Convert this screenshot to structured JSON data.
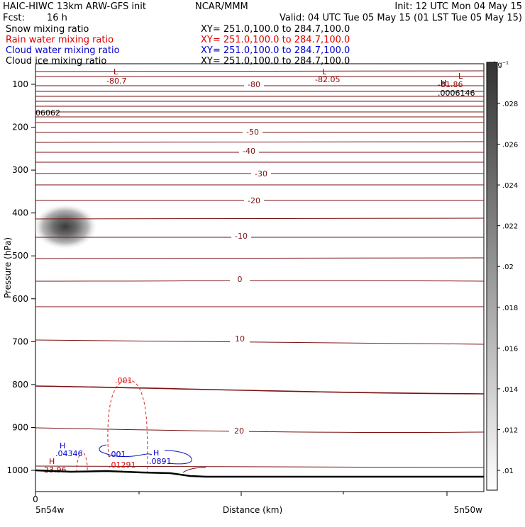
{
  "header": {
    "left_line1": "HAIC-HIWC 13km ARW-GFS init",
    "center_line1": "NCAR/MMM",
    "right_line1": "Init: 12 UTC Mon 04 May 15",
    "fcst_label": "Fcst:",
    "fcst_value": "16 h",
    "valid_line": "Valid: 04 UTC Tue 05 May 15 (01 LST Tue 05 May 15)"
  },
  "fields": [
    {
      "name": "Snow mixing ratio",
      "xy": "XY= 251.0,100.0 to 284.7,100.0",
      "color": "#000000"
    },
    {
      "name": "Rain water mixing ratio",
      "xy": "XY= 251.0,100.0 to 284.7,100.0",
      "color": "#dd0000"
    },
    {
      "name": "Cloud water mixing ratio",
      "xy": "XY= 251.0,100.0 to 284.7,100.0",
      "color": "#0000cc"
    },
    {
      "name": "Cloud ice mixing ratio",
      "xy": "XY= 251.0,100.0 to 284.7,100.0",
      "color": "#000000"
    }
  ],
  "chart_data": {
    "type": "cross-section",
    "xlabel": "Distance (km)",
    "ylabel": "Pressure (hPa)",
    "x_tick_zero": "0",
    "x_end_labels": {
      "left": "5n54w",
      "right": "5n50w"
    },
    "y_ticks": [
      100,
      200,
      300,
      400,
      500,
      600,
      700,
      800,
      900,
      1000
    ],
    "y_range": [
      50,
      1050
    ],
    "colorbar": {
      "unit": "g kg⁻¹",
      "ticks": [
        ".01",
        ".012",
        ".014",
        ".016",
        ".018",
        ".02",
        ".022",
        ".024",
        ".026",
        ".028"
      ]
    },
    "temperature_contour_labels": [
      "-80",
      "-50",
      "-40",
      "-30",
      "-20",
      "-10",
      "0",
      "10",
      "20"
    ],
    "extrema": [
      {
        "type": "L",
        "value": "-80.7",
        "color": "#990000"
      },
      {
        "type": "L",
        "value": "-82.05",
        "color": "#990000"
      },
      {
        "type": "L",
        "value": "-81.86",
        "color": "#990000"
      },
      {
        "type": "H",
        "value": ".0006146",
        "color": "#000000"
      },
      {
        "type": "",
        "value": "06062",
        "color": "#000000"
      },
      {
        "type": "H",
        "value": "23.96",
        "color": "#990000"
      },
      {
        "type": "H",
        "value": ".04346",
        "color": "#0000cc"
      },
      {
        "type": "",
        "value": ".001",
        "color": "#0000cc"
      },
      {
        "type": "",
        "value": ".01291",
        "color": "#dd0000"
      },
      {
        "type": "H",
        "value": ".0891",
        "color": "#0000cc"
      },
      {
        "type": "",
        "value": ".001",
        "color": "#dd0000"
      }
    ],
    "shaded_blob_center": {
      "pressure_hpa": 435
    },
    "colors": {
      "temperature": "#7a1010",
      "rain": "#dd2222",
      "cloud_water": "#1111cc",
      "terrain": "#000000"
    }
  }
}
